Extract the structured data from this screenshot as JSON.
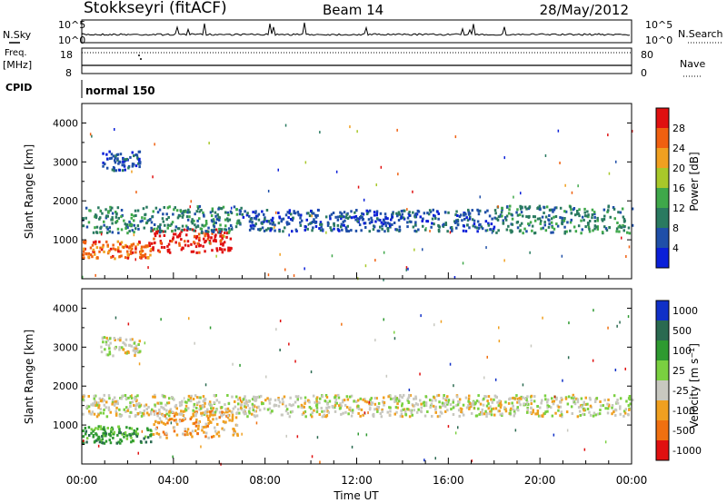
{
  "header": {
    "title": "Stokkseyri (fitACF)",
    "beam": "Beam 14",
    "date": "28/May/2012"
  },
  "status_panels": {
    "nsky_label": "N.Sky",
    "nsky_ticks": [
      "10^5",
      "10^0"
    ],
    "nsearch_label": "N.Search",
    "nsearch_ticks": [
      "10^5",
      "10^0"
    ],
    "freq_label": "Freq.",
    "freq_unit": "[MHz]",
    "freq_ticks": [
      "18",
      "8"
    ],
    "nave_label": "Nave",
    "nave_ticks": [
      "80",
      "0"
    ],
    "cpid_label": "CPID",
    "cpid_value": "normal 150"
  },
  "chart_data": [
    {
      "type": "heatmap",
      "title": "",
      "ylabel": "Slant Range [km]",
      "xlabel": "",
      "ylim": [
        0,
        4500
      ],
      "yticks": [
        "1000",
        "2000",
        "3000",
        "4000"
      ],
      "xlim": [
        0,
        24
      ],
      "colorbar": {
        "label": "Power [dB]",
        "ticks": [
          "4",
          "8",
          "12",
          "16",
          "20",
          "24",
          "28"
        ],
        "colors": [
          "#0a1fd8",
          "#1f4fa8",
          "#2a7a60",
          "#3fa84a",
          "#a8c82a",
          "#f0a020",
          "#f06010",
          "#e01010"
        ]
      },
      "bands": [
        {
          "t0": 0.0,
          "t1": 3.0,
          "r0": 550,
          "r1": 1000,
          "level": 6
        },
        {
          "t0": 3.0,
          "t1": 6.5,
          "r0": 700,
          "r1": 1300,
          "level": 7
        },
        {
          "t0": 0.0,
          "t1": 7.0,
          "r0": 1200,
          "r1": 1900,
          "level": 2
        },
        {
          "t0": 7.0,
          "t1": 18.0,
          "r0": 1250,
          "r1": 1800,
          "level": 1
        },
        {
          "t0": 18.0,
          "t1": 24.0,
          "r0": 1200,
          "r1": 1900,
          "level": 2
        },
        {
          "t0": 0.8,
          "t1": 2.5,
          "r0": 2800,
          "r1": 3300,
          "level": 1
        }
      ]
    },
    {
      "type": "heatmap",
      "title": "",
      "ylabel": "Slant Range [km]",
      "xlabel": "Time UT",
      "ylim": [
        0,
        4500
      ],
      "yticks": [
        "1000",
        "2000",
        "3000",
        "4000"
      ],
      "xlim": [
        0,
        24
      ],
      "xticks": [
        "00:00",
        "04:00",
        "08:00",
        "12:00",
        "16:00",
        "20:00",
        "00:00"
      ],
      "colorbar": {
        "label": "Velocity [m s^-1]",
        "ticks": [
          "1000",
          "500",
          "100",
          "25",
          "-25",
          "-100",
          "-500",
          "-1000"
        ],
        "colors": [
          "#1030c8",
          "#2a6a50",
          "#2e9a30",
          "#7ad040",
          "#c8c8c0",
          "#f0a020",
          "#f07010",
          "#e01010"
        ]
      },
      "bands": [
        {
          "t0": 0.0,
          "t1": 3.0,
          "r0": 550,
          "r1": 1000,
          "level": 2
        },
        {
          "t0": 3.0,
          "t1": 6.8,
          "r0": 700,
          "r1": 1400,
          "level": 5
        },
        {
          "t0": 0.0,
          "t1": 24.0,
          "r0": 1250,
          "r1": 1800,
          "level": 4
        },
        {
          "t0": 0.8,
          "t1": 2.5,
          "r0": 2800,
          "r1": 3300,
          "level": 4
        }
      ]
    }
  ]
}
